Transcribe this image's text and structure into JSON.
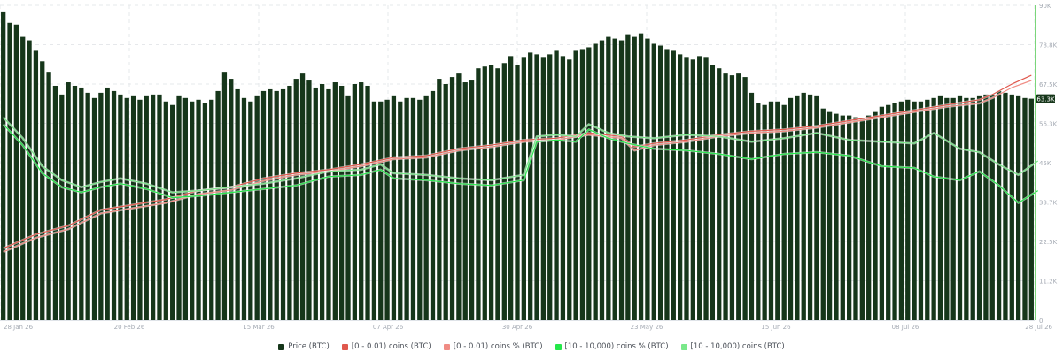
{
  "chart_data": {
    "type": "bar",
    "title": "",
    "xlabel": "",
    "ylabel": "",
    "ylim": [
      0,
      90000
    ],
    "y_ticks": [
      "90K",
      "78.8K",
      "67.5K",
      "56.3K",
      "45K",
      "33.7K",
      "22.5K",
      "11.2K",
      "0"
    ],
    "x_ticks": [
      "28 Jan 26",
      "20 Feb 26",
      "15 Mar 26",
      "07 Apr 26",
      "30 Apr 26",
      "23 May 26",
      "15 Jun 26",
      "08 Jul 26",
      "28 Jul 26"
    ],
    "last_value_label": "63.3K",
    "grid": true,
    "legend_position": "bottom",
    "colors": {
      "price": "#16361a",
      "small_abs": "#e0584d",
      "small_pct": "#f08c84",
      "large_pct": "#25e84a",
      "large_abs": "#7ae88a",
      "badge": "#16361a",
      "axis": "#7ad67a"
    },
    "series": [
      {
        "name": "Price (BTC)",
        "kind": "bar",
        "values": [
          88000,
          85000,
          84500,
          81000,
          80000,
          77000,
          74000,
          71000,
          67000,
          64500,
          68000,
          67000,
          66500,
          65000,
          63500,
          65000,
          66500,
          65500,
          64500,
          63500,
          64000,
          63000,
          64000,
          64500,
          64500,
          62500,
          61500,
          64000,
          63500,
          62500,
          63000,
          62000,
          63000,
          65500,
          71000,
          69000,
          66000,
          63500,
          62500,
          64000,
          65500,
          66000,
          65500,
          66000,
          67000,
          69000,
          70500,
          68500,
          66500,
          67500,
          66000,
          68000,
          67000,
          64000,
          67500,
          68000,
          67000,
          62500,
          62500,
          63000,
          64000,
          62500,
          63500,
          63500,
          63000,
          64000,
          65500,
          69000,
          67500,
          69500,
          70500,
          68000,
          68500,
          72000,
          72500,
          73000,
          72000,
          73500,
          75500,
          73000,
          75000,
          76500,
          76000,
          75000,
          76000,
          77000,
          75500,
          74500,
          77000,
          77500,
          78000,
          79000,
          80000,
          81000,
          80500,
          80000,
          81500,
          81000,
          82000,
          80500,
          79000,
          78500,
          77500,
          77000,
          76000,
          75000,
          74500,
          75500,
          75000,
          73000,
          72000,
          70500,
          70000,
          70500,
          69500,
          65000,
          62000,
          61500,
          62500,
          62500,
          61500,
          63500,
          64000,
          65000,
          64500,
          64000,
          60500,
          59500,
          59000,
          58500,
          58500,
          58000,
          57500,
          58500,
          59500,
          61000,
          61500,
          62000,
          62500,
          63000,
          62500,
          62500,
          63000,
          63500,
          64000,
          63500,
          63500,
          64000,
          63500,
          63500,
          64000,
          64500,
          64500,
          65500,
          65000,
          64500,
          64000,
          63500,
          63300
        ]
      },
      {
        "name": "[0 - 0.01) coins (BTC)",
        "kind": "line",
        "points": [
          [
            0,
            20500
          ],
          [
            5,
            24500
          ],
          [
            10,
            27000
          ],
          [
            15,
            31500
          ],
          [
            20,
            33000
          ],
          [
            25,
            34500
          ],
          [
            30,
            37000
          ],
          [
            35,
            38000
          ],
          [
            40,
            40500
          ],
          [
            45,
            42000
          ],
          [
            50,
            43000
          ],
          [
            55,
            44500
          ],
          [
            60,
            46500
          ],
          [
            65,
            47000
          ],
          [
            70,
            49000
          ],
          [
            75,
            50000
          ],
          [
            80,
            51500
          ],
          [
            85,
            52000
          ],
          [
            90,
            53500
          ],
          [
            95,
            52500
          ],
          [
            97,
            49500
          ],
          [
            100,
            50500
          ],
          [
            105,
            51500
          ],
          [
            110,
            53000
          ],
          [
            115,
            54000
          ],
          [
            120,
            54500
          ],
          [
            125,
            55500
          ],
          [
            130,
            57000
          ],
          [
            135,
            58500
          ],
          [
            140,
            60000
          ],
          [
            145,
            61500
          ],
          [
            150,
            63000
          ],
          [
            152,
            64500
          ],
          [
            155,
            67500
          ],
          [
            158,
            70000
          ]
        ]
      },
      {
        "name": "[0 - 0.01) coins % (BTC)",
        "kind": "line",
        "points": [
          [
            0,
            19500
          ],
          [
            5,
            23500
          ],
          [
            10,
            26000
          ],
          [
            15,
            30500
          ],
          [
            20,
            32000
          ],
          [
            25,
            33500
          ],
          [
            30,
            36000
          ],
          [
            35,
            37200
          ],
          [
            40,
            39800
          ],
          [
            45,
            41500
          ],
          [
            50,
            42500
          ],
          [
            55,
            44000
          ],
          [
            60,
            46000
          ],
          [
            65,
            46500
          ],
          [
            70,
            48500
          ],
          [
            75,
            49500
          ],
          [
            80,
            51000
          ],
          [
            85,
            51500
          ],
          [
            90,
            53000
          ],
          [
            95,
            52000
          ],
          [
            97,
            48500
          ],
          [
            100,
            50000
          ],
          [
            105,
            51000
          ],
          [
            110,
            52500
          ],
          [
            115,
            53500
          ],
          [
            120,
            54000
          ],
          [
            125,
            55000
          ],
          [
            130,
            56500
          ],
          [
            135,
            58000
          ],
          [
            140,
            59500
          ],
          [
            145,
            61000
          ],
          [
            150,
            62000
          ],
          [
            152,
            63500
          ],
          [
            155,
            66500
          ],
          [
            158,
            68500
          ]
        ]
      },
      {
        "name": "[10 - 10,000) coins % (BTC)",
        "kind": "line",
        "points": [
          [
            0,
            56000
          ],
          [
            3,
            50000
          ],
          [
            6,
            42000
          ],
          [
            9,
            38000
          ],
          [
            12,
            36500
          ],
          [
            15,
            38000
          ],
          [
            18,
            39000
          ],
          [
            22,
            37500
          ],
          [
            26,
            35000
          ],
          [
            30,
            35500
          ],
          [
            35,
            36500
          ],
          [
            40,
            37500
          ],
          [
            45,
            38500
          ],
          [
            50,
            41000
          ],
          [
            55,
            41500
          ],
          [
            58,
            43000
          ],
          [
            60,
            40500
          ],
          [
            65,
            40000
          ],
          [
            70,
            39000
          ],
          [
            75,
            38500
          ],
          [
            80,
            40000
          ],
          [
            82,
            51000
          ],
          [
            85,
            51500
          ],
          [
            88,
            51000
          ],
          [
            90,
            54500
          ],
          [
            93,
            52000
          ],
          [
            96,
            50500
          ],
          [
            100,
            49000
          ],
          [
            105,
            48500
          ],
          [
            110,
            47500
          ],
          [
            115,
            46000
          ],
          [
            120,
            47500
          ],
          [
            125,
            48000
          ],
          [
            130,
            47000
          ],
          [
            135,
            44000
          ],
          [
            140,
            43500
          ],
          [
            143,
            41000
          ],
          [
            147,
            40000
          ],
          [
            150,
            42500
          ],
          [
            153,
            38500
          ],
          [
            156,
            33500
          ],
          [
            159,
            37000
          ]
        ]
      },
      {
        "name": "[10 - 10,000) coins (BTC)",
        "kind": "line",
        "points": [
          [
            0,
            58000
          ],
          [
            3,
            52000
          ],
          [
            6,
            44000
          ],
          [
            9,
            40000
          ],
          [
            12,
            38000
          ],
          [
            15,
            39500
          ],
          [
            18,
            40500
          ],
          [
            22,
            39000
          ],
          [
            26,
            36500
          ],
          [
            30,
            37000
          ],
          [
            35,
            38000
          ],
          [
            40,
            39000
          ],
          [
            45,
            40500
          ],
          [
            50,
            42500
          ],
          [
            55,
            43000
          ],
          [
            58,
            44500
          ],
          [
            60,
            42000
          ],
          [
            65,
            41500
          ],
          [
            70,
            40500
          ],
          [
            75,
            40000
          ],
          [
            80,
            41500
          ],
          [
            82,
            52500
          ],
          [
            85,
            53000
          ],
          [
            88,
            52500
          ],
          [
            90,
            56000
          ],
          [
            93,
            53500
          ],
          [
            96,
            52500
          ],
          [
            100,
            52000
          ],
          [
            105,
            53000
          ],
          [
            110,
            52500
          ],
          [
            115,
            51000
          ],
          [
            120,
            52000
          ],
          [
            125,
            53500
          ],
          [
            130,
            51500
          ],
          [
            135,
            51000
          ],
          [
            140,
            50500
          ],
          [
            143,
            53500
          ],
          [
            147,
            49000
          ],
          [
            150,
            48000
          ],
          [
            153,
            44500
          ],
          [
            156,
            41500
          ],
          [
            159,
            45500
          ]
        ]
      }
    ]
  },
  "legend": {
    "items": [
      {
        "label": "Price (BTC)",
        "color": "#16361a"
      },
      {
        "label": "[0 - 0.01) coins (BTC)",
        "color": "#e0584d"
      },
      {
        "label": "[0 - 0.01) coins % (BTC)",
        "color": "#f08c84"
      },
      {
        "label": "[10 - 10,000) coins % (BTC)",
        "color": "#25e84a"
      },
      {
        "label": "[10 - 10,000) coins (BTC)",
        "color": "#7ae88a"
      }
    ]
  }
}
